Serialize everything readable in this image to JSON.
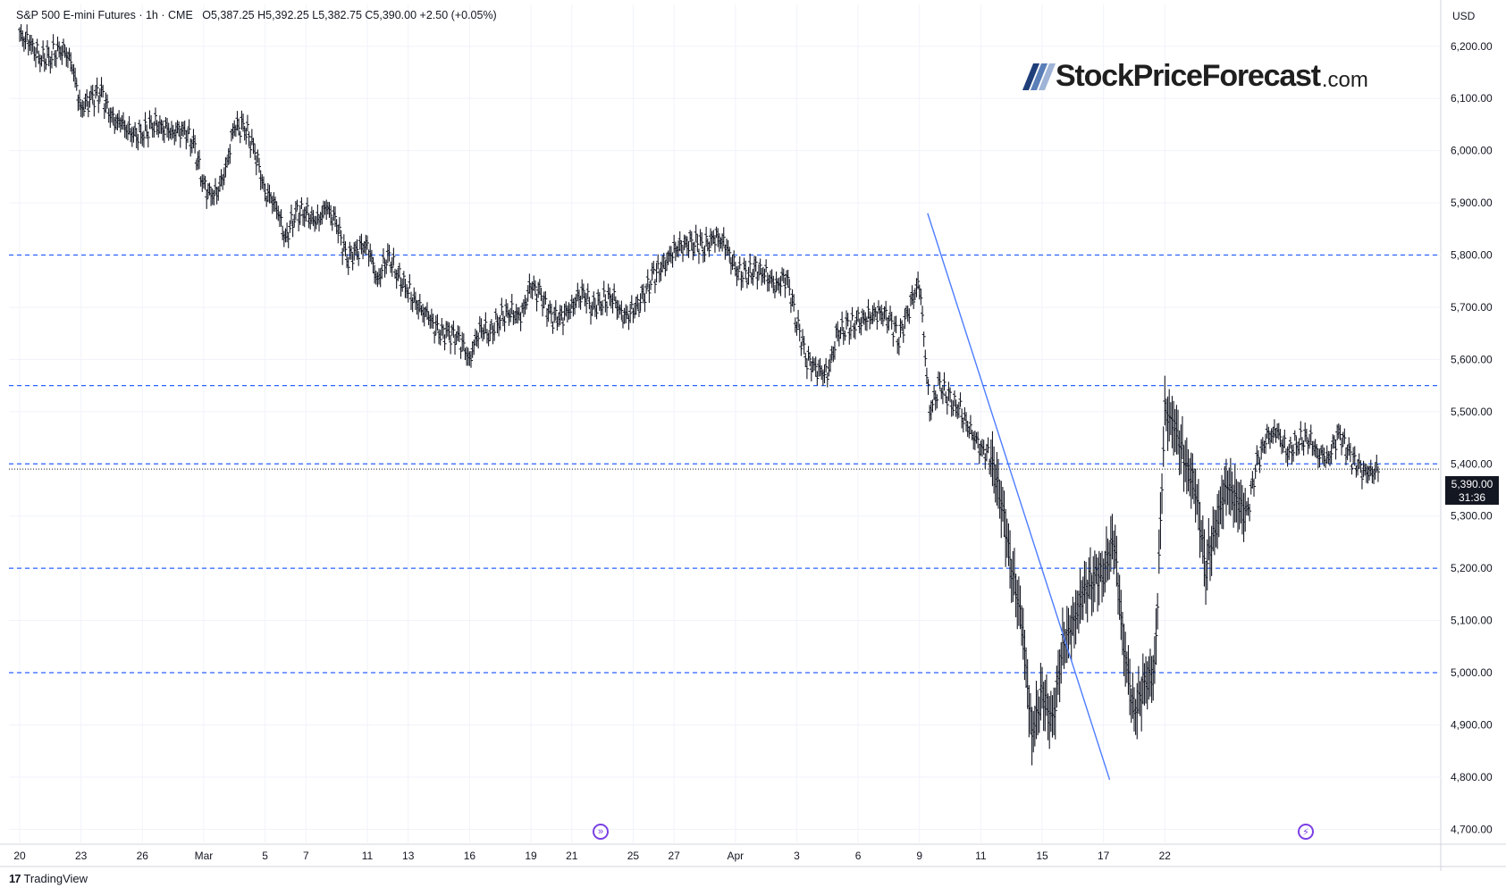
{
  "header": {
    "symbol": "S&P 500 E-mini Futures",
    "interval": "1h",
    "exchange": "CME",
    "open": "O5,387.25",
    "high": "H5,392.25",
    "low": "L5,382.75",
    "close": "C5,390.00",
    "change": "+2.50 (+0.05%)"
  },
  "currency": "USD",
  "watermark": {
    "brand": "StockPriceForecast",
    "tld": ".com",
    "colors": [
      "#1f3f7a",
      "#5a7fb8",
      "#9fb4d6"
    ]
  },
  "footer": {
    "logo": "17",
    "label": "TradingView"
  },
  "last_price": {
    "value": "5,390.00",
    "countdown": "31:36"
  },
  "icons": [
    "skip-forward-icon",
    "flash-icon"
  ],
  "colors": {
    "candle": "#131722",
    "trendline": "#4d7cff",
    "level_line": "#2962ff",
    "badge": "#131722"
  },
  "chart_data": {
    "type": "ohlc",
    "title": "S&P 500 E-mini Futures · 1h · CME",
    "xlabel": "",
    "ylabel": "",
    "ylim": [
      4680,
      6280
    ],
    "y_ticks": [
      "4,700.00",
      "4,800.00",
      "4,900.00",
      "5,000.00",
      "5,100.00",
      "5,200.00",
      "5,300.00",
      "5,400.00",
      "5,500.00",
      "5,600.00",
      "5,700.00",
      "5,800.00",
      "5,900.00",
      "6,000.00",
      "6,100.00",
      "6,200.00"
    ],
    "y_tick_values": [
      4700,
      4800,
      4900,
      5000,
      5100,
      5200,
      5300,
      5400,
      5500,
      5600,
      5700,
      5800,
      5900,
      6000,
      6100,
      6200
    ],
    "x_ticks": [
      "20",
      "23",
      "26",
      "Mar",
      "5",
      "7",
      "11",
      "13",
      "16",
      "19",
      "21",
      "25",
      "27",
      "Apr",
      "3",
      "6",
      "9",
      "11",
      "15",
      "17",
      "22"
    ],
    "x_tick_positions": [
      0,
      3,
      6,
      9,
      12,
      14,
      17,
      19,
      22,
      25,
      27,
      30,
      32,
      35,
      38,
      41,
      44,
      47,
      50,
      53,
      56
    ],
    "horizontal_levels": [
      5800,
      5550,
      5400,
      5200,
      5000
    ],
    "trendline": {
      "from": {
        "date": "Apr 2",
        "price": 5880
      },
      "to": {
        "date": "Apr 8",
        "price": 4795
      }
    },
    "grid": true,
    "series": [
      {
        "name": "S&P 500 E-mini Futures",
        "points": [
          {
            "x": 0,
            "y": 6220
          },
          {
            "x": 0.5,
            "y": 6205
          },
          {
            "x": 1,
            "y": 6175
          },
          {
            "x": 1.5,
            "y": 6180
          },
          {
            "x": 2,
            "y": 6195
          },
          {
            "x": 2.5,
            "y": 6175
          },
          {
            "x": 3,
            "y": 6080
          },
          {
            "x": 3.5,
            "y": 6100
          },
          {
            "x": 4,
            "y": 6110
          },
          {
            "x": 4.5,
            "y": 6060
          },
          {
            "x": 5,
            "y": 6050
          },
          {
            "x": 5.5,
            "y": 6030
          },
          {
            "x": 6,
            "y": 6030
          },
          {
            "x": 6.5,
            "y": 6050
          },
          {
            "x": 7,
            "y": 6045
          },
          {
            "x": 7.5,
            "y": 6035
          },
          {
            "x": 8,
            "y": 6040
          },
          {
            "x": 8.5,
            "y": 6015
          },
          {
            "x": 9,
            "y": 5930
          },
          {
            "x": 9.5,
            "y": 5910
          },
          {
            "x": 10,
            "y": 5950
          },
          {
            "x": 10.5,
            "y": 6045
          },
          {
            "x": 11,
            "y": 6045
          },
          {
            "x": 11.5,
            "y": 6000
          },
          {
            "x": 12,
            "y": 5920
          },
          {
            "x": 12.5,
            "y": 5900
          },
          {
            "x": 13,
            "y": 5830
          },
          {
            "x": 13.5,
            "y": 5880
          },
          {
            "x": 14,
            "y": 5880
          },
          {
            "x": 14.5,
            "y": 5860
          },
          {
            "x": 15,
            "y": 5890
          },
          {
            "x": 15.5,
            "y": 5860
          },
          {
            "x": 16,
            "y": 5790
          },
          {
            "x": 16.5,
            "y": 5810
          },
          {
            "x": 17,
            "y": 5820
          },
          {
            "x": 17.5,
            "y": 5750
          },
          {
            "x": 18,
            "y": 5800
          },
          {
            "x": 18.5,
            "y": 5760
          },
          {
            "x": 19,
            "y": 5730
          },
          {
            "x": 19.5,
            "y": 5700
          },
          {
            "x": 20,
            "y": 5680
          },
          {
            "x": 20.5,
            "y": 5650
          },
          {
            "x": 21,
            "y": 5650
          },
          {
            "x": 21.5,
            "y": 5640
          },
          {
            "x": 22,
            "y": 5600
          },
          {
            "x": 22.5,
            "y": 5660
          },
          {
            "x": 23,
            "y": 5650
          },
          {
            "x": 23.5,
            "y": 5680
          },
          {
            "x": 24,
            "y": 5690
          },
          {
            "x": 24.5,
            "y": 5680
          },
          {
            "x": 25,
            "y": 5740
          },
          {
            "x": 25.5,
            "y": 5720
          },
          {
            "x": 26,
            "y": 5680
          },
          {
            "x": 26.5,
            "y": 5680
          },
          {
            "x": 27,
            "y": 5700
          },
          {
            "x": 27.5,
            "y": 5730
          },
          {
            "x": 28,
            "y": 5700
          },
          {
            "x": 28.5,
            "y": 5710
          },
          {
            "x": 29,
            "y": 5720
          },
          {
            "x": 29.5,
            "y": 5680
          },
          {
            "x": 30,
            "y": 5690
          },
          {
            "x": 30.5,
            "y": 5720
          },
          {
            "x": 31,
            "y": 5760
          },
          {
            "x": 31.5,
            "y": 5780
          },
          {
            "x": 32,
            "y": 5810
          },
          {
            "x": 32.5,
            "y": 5820
          },
          {
            "x": 33,
            "y": 5825
          },
          {
            "x": 33.5,
            "y": 5815
          },
          {
            "x": 34,
            "y": 5835
          },
          {
            "x": 34.5,
            "y": 5820
          },
          {
            "x": 35,
            "y": 5770
          },
          {
            "x": 35.5,
            "y": 5760
          },
          {
            "x": 36,
            "y": 5770
          },
          {
            "x": 36.5,
            "y": 5760
          },
          {
            "x": 37,
            "y": 5740
          },
          {
            "x": 37.5,
            "y": 5760
          },
          {
            "x": 38,
            "y": 5670
          },
          {
            "x": 38.5,
            "y": 5600
          },
          {
            "x": 39,
            "y": 5580
          },
          {
            "x": 39.5,
            "y": 5570
          },
          {
            "x": 40,
            "y": 5650
          },
          {
            "x": 40.5,
            "y": 5660
          },
          {
            "x": 41,
            "y": 5670
          },
          {
            "x": 41.5,
            "y": 5680
          },
          {
            "x": 42,
            "y": 5690
          },
          {
            "x": 42.5,
            "y": 5680
          },
          {
            "x": 43,
            "y": 5640
          },
          {
            "x": 43.5,
            "y": 5700
          },
          {
            "x": 44,
            "y": 5750
          },
          {
            "x": 44.5,
            "y": 5500
          },
          {
            "x": 45,
            "y": 5550
          },
          {
            "x": 45.5,
            "y": 5520
          },
          {
            "x": 46,
            "y": 5500
          },
          {
            "x": 46.5,
            "y": 5460
          },
          {
            "x": 47,
            "y": 5430
          },
          {
            "x": 47.5,
            "y": 5410
          },
          {
            "x": 48,
            "y": 5330
          },
          {
            "x": 48.5,
            "y": 5200
          },
          {
            "x": 49,
            "y": 5100
          },
          {
            "x": 49.5,
            "y": 4880
          },
          {
            "x": 50,
            "y": 4960
          },
          {
            "x": 50.5,
            "y": 4900
          },
          {
            "x": 51,
            "y": 5050
          },
          {
            "x": 51.5,
            "y": 5090
          },
          {
            "x": 52,
            "y": 5150
          },
          {
            "x": 52.5,
            "y": 5180
          },
          {
            "x": 53,
            "y": 5190
          },
          {
            "x": 53.5,
            "y": 5260
          },
          {
            "x": 54,
            "y": 5050
          },
          {
            "x": 54.5,
            "y": 4920
          },
          {
            "x": 55,
            "y": 4980
          },
          {
            "x": 55.5,
            "y": 5000
          },
          {
            "x": 56,
            "y": 5500
          },
          {
            "x": 56.5,
            "y": 5470
          },
          {
            "x": 57,
            "y": 5400
          },
          {
            "x": 57.5,
            "y": 5350
          },
          {
            "x": 58,
            "y": 5200
          },
          {
            "x": 58.5,
            "y": 5280
          },
          {
            "x": 59,
            "y": 5360
          },
          {
            "x": 59.5,
            "y": 5330
          },
          {
            "x": 60,
            "y": 5300
          },
          {
            "x": 60.5,
            "y": 5400
          },
          {
            "x": 61,
            "y": 5450
          },
          {
            "x": 61.5,
            "y": 5460
          },
          {
            "x": 62,
            "y": 5420
          },
          {
            "x": 62.5,
            "y": 5440
          },
          {
            "x": 63,
            "y": 5450
          },
          {
            "x": 63.5,
            "y": 5420
          },
          {
            "x": 64,
            "y": 5410
          },
          {
            "x": 64.5,
            "y": 5460
          },
          {
            "x": 65,
            "y": 5420
          },
          {
            "x": 65.5,
            "y": 5390
          },
          {
            "x": 66,
            "y": 5380
          },
          {
            "x": 66.5,
            "y": 5390
          }
        ]
      }
    ]
  }
}
